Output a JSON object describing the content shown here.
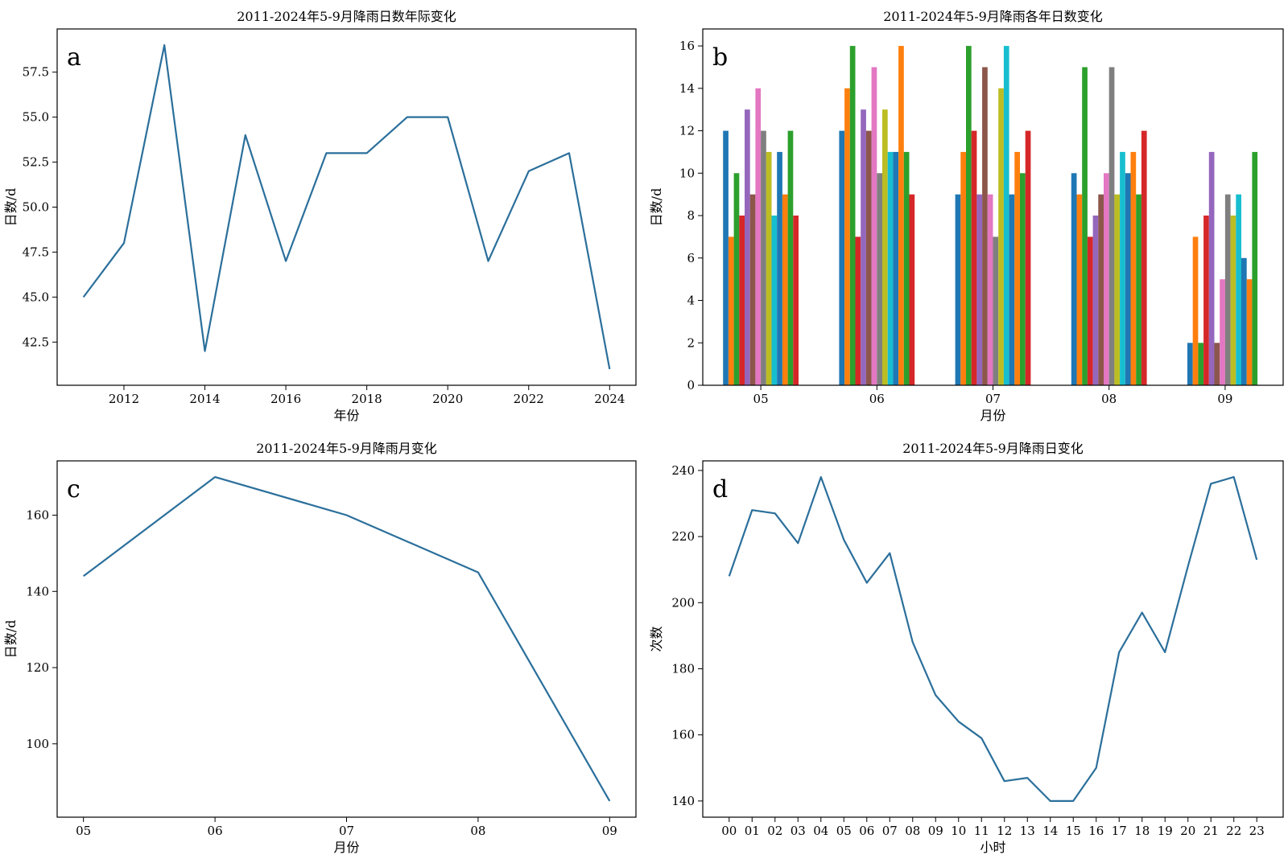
{
  "colors": {
    "line": "#2b6f9b",
    "tab10": [
      "#1f77b4",
      "#ff7f0e",
      "#2ca02c",
      "#d62728",
      "#9467bd",
      "#8c564b",
      "#e377c2",
      "#7f7f7f",
      "#bcbd22",
      "#17becf"
    ]
  },
  "chart_data": [
    {
      "panel": "a",
      "type": "line",
      "title": "2011-2024年5-9月降雨日数年际变化",
      "xlabel": "年份",
      "ylabel": "日数/d",
      "x": [
        2011,
        2012,
        2013,
        2014,
        2015,
        2016,
        2017,
        2018,
        2019,
        2020,
        2021,
        2022,
        2023,
        2024
      ],
      "values": [
        45,
        48,
        59,
        42,
        54,
        47,
        53,
        53,
        55,
        55,
        47,
        52,
        53,
        41
      ],
      "xlim": [
        2010.35,
        2024.65
      ],
      "ylim": [
        40.1,
        59.9
      ],
      "xticks": [
        2012,
        2014,
        2016,
        2018,
        2020,
        2022,
        2024
      ],
      "xtick_labels": [
        "2012",
        "2014",
        "2016",
        "2018",
        "2020",
        "2022",
        "2024"
      ],
      "yticks": [
        42.5,
        45.0,
        47.5,
        50.0,
        52.5,
        55.0,
        57.5
      ],
      "ytick_labels": [
        "42.5",
        "45.0",
        "47.5",
        "50.0",
        "52.5",
        "55.0",
        "57.5"
      ],
      "grid": false,
      "legend": "none"
    },
    {
      "panel": "b",
      "type": "bar",
      "title": "2011-2024年5-9月降雨各年日数变化",
      "xlabel": "月份",
      "ylabel": "日数/d",
      "categories": [
        "05",
        "06",
        "07",
        "08",
        "09"
      ],
      "series": [
        {
          "values": [
            12,
            12,
            9,
            10,
            2
          ]
        },
        {
          "values": [
            7,
            14,
            11,
            9,
            7
          ]
        },
        {
          "values": [
            10,
            16,
            16,
            15,
            2
          ]
        },
        {
          "values": [
            8,
            7,
            12,
            7,
            8
          ]
        },
        {
          "values": [
            13,
            13,
            9,
            8,
            11
          ]
        },
        {
          "values": [
            9,
            12,
            15,
            9,
            2
          ]
        },
        {
          "values": [
            14,
            15,
            9,
            10,
            5
          ]
        },
        {
          "values": [
            12,
            10,
            7,
            15,
            9
          ]
        },
        {
          "values": [
            11,
            13,
            14,
            9,
            8
          ]
        },
        {
          "values": [
            8,
            11,
            16,
            11,
            9
          ]
        },
        {
          "values": [
            11,
            11,
            9,
            10,
            6
          ]
        },
        {
          "values": [
            9,
            16,
            11,
            11,
            5
          ]
        },
        {
          "values": [
            12,
            11,
            10,
            9,
            11
          ]
        },
        {
          "values": [
            8,
            9,
            12,
            12,
            0
          ]
        }
      ],
      "ylim": [
        0,
        16.8
      ],
      "yticks": [
        0,
        2,
        4,
        6,
        8,
        10,
        12,
        14,
        16
      ],
      "ytick_labels": [
        "0",
        "2",
        "4",
        "6",
        "8",
        "10",
        "12",
        "14",
        "16"
      ],
      "grid": false,
      "legend": "none"
    },
    {
      "panel": "c",
      "type": "line",
      "title": "2011-2024年5-9月降雨月变化",
      "xlabel": "月份",
      "ylabel": "日数/d",
      "categories": [
        "05",
        "06",
        "07",
        "08",
        "09"
      ],
      "values": [
        144,
        170,
        160,
        145,
        85
      ],
      "xlim": [
        -0.2,
        4.2
      ],
      "ylim": [
        80.75,
        174.25
      ],
      "yticks": [
        100,
        120,
        140,
        160
      ],
      "ytick_labels": [
        "100",
        "120",
        "140",
        "160"
      ],
      "grid": false,
      "legend": "none"
    },
    {
      "panel": "d",
      "type": "line",
      "title": "2011-2024年5-9月降雨日变化",
      "xlabel": "小时",
      "ylabel": "次数",
      "categories": [
        "00",
        "01",
        "02",
        "03",
        "04",
        "05",
        "06",
        "07",
        "08",
        "09",
        "10",
        "11",
        "12",
        "13",
        "14",
        "15",
        "16",
        "17",
        "18",
        "19",
        "20",
        "21",
        "22",
        "23"
      ],
      "values": [
        208,
        228,
        227,
        218,
        238,
        219,
        206,
        215,
        188,
        172,
        164,
        159,
        146,
        147,
        140,
        140,
        150,
        185,
        197,
        185,
        211,
        236,
        238,
        213
      ],
      "xlim": [
        -1.15,
        24.15
      ],
      "ylim": [
        135.1,
        242.9
      ],
      "yticks": [
        140,
        160,
        180,
        200,
        220,
        240
      ],
      "ytick_labels": [
        "140",
        "160",
        "180",
        "200",
        "220",
        "240"
      ],
      "grid": false,
      "legend": "none"
    }
  ]
}
